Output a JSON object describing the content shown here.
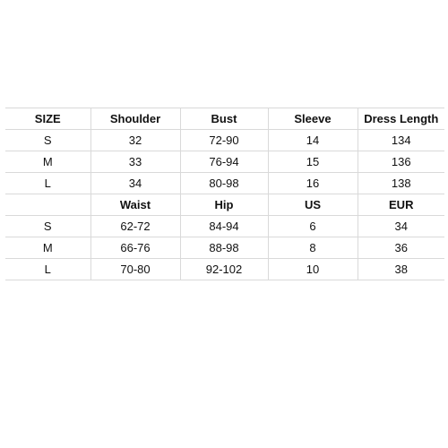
{
  "table": {
    "header1": [
      "SIZE",
      "Shoulder",
      "Bust",
      "Sleeve",
      "Dress Length"
    ],
    "rows1": [
      [
        "S",
        "32",
        "72-90",
        "14",
        "134"
      ],
      [
        "M",
        "33",
        "76-94",
        "15",
        "136"
      ],
      [
        "L",
        "34",
        "80-98",
        "16",
        "138"
      ]
    ],
    "header2": [
      "",
      "Waist",
      "Hip",
      "US",
      "EUR"
    ],
    "rows2": [
      [
        "S",
        "62-72",
        "84-94",
        "6",
        "34"
      ],
      [
        "M",
        "66-76",
        "88-98",
        "8",
        "36"
      ],
      [
        "L",
        "70-80",
        "92-102",
        "10",
        "38"
      ]
    ]
  }
}
